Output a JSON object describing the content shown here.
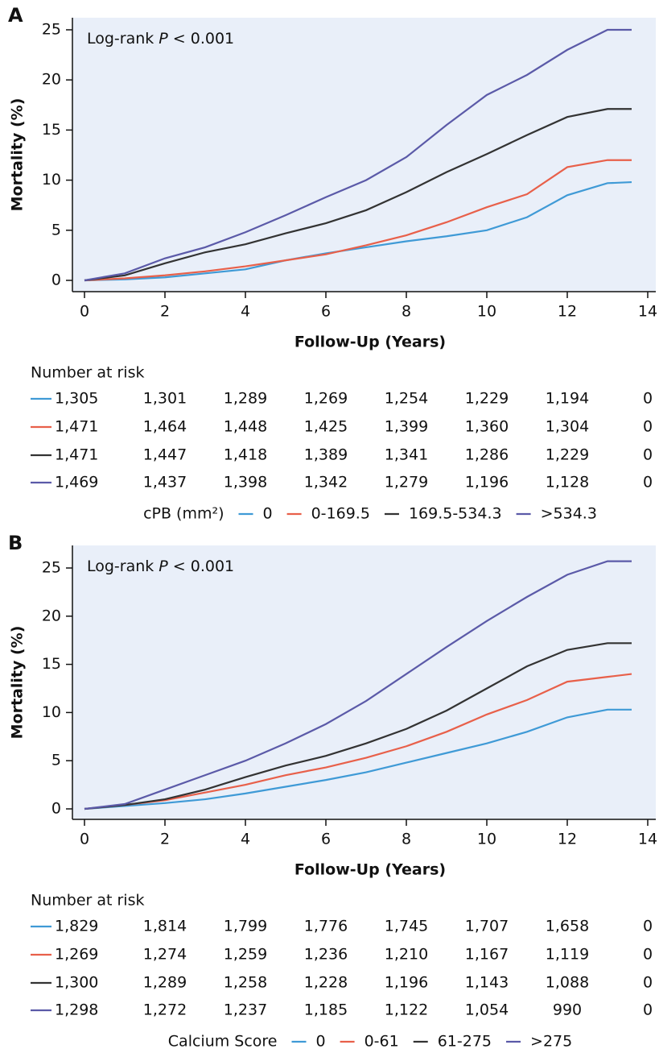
{
  "chart_data": [
    {
      "type": "line",
      "panel": "A",
      "annotation": {
        "before": "Log-rank",
        "italic": "P",
        "after": "< 0.001"
      },
      "x_label": "Follow-Up (Years)",
      "y_label": "Mortality (%)",
      "xlim": [
        0,
        14
      ],
      "xticks": [
        0,
        2,
        4,
        6,
        8,
        10,
        12,
        14
      ],
      "ylim": [
        0,
        25
      ],
      "yticks": [
        0,
        5,
        10,
        15,
        20,
        25
      ],
      "x": [
        0,
        1,
        2,
        3,
        4,
        5,
        6,
        7,
        8,
        9,
        10,
        11,
        12,
        13,
        13.6
      ],
      "risk_title": "Number at risk",
      "legend_title": "cPB (mm²)",
      "series": [
        {
          "name": "0",
          "color": "#3f9ad6",
          "values": [
            0,
            0.1,
            0.3,
            0.7,
            1.1,
            2.0,
            2.7,
            3.3,
            3.9,
            4.4,
            5.0,
            6.3,
            8.5,
            9.7,
            9.8
          ],
          "at_risk": [
            "1,305",
            "1,301",
            "1,289",
            "1,269",
            "1,254",
            "1,229",
            "1,194",
            "0"
          ]
        },
        {
          "name": "0-169.5",
          "color": "#e8604a",
          "values": [
            0,
            0.2,
            0.5,
            0.9,
            1.4,
            2.0,
            2.6,
            3.5,
            4.5,
            5.8,
            7.3,
            8.6,
            11.3,
            12.0,
            12.0
          ],
          "at_risk": [
            "1,471",
            "1,464",
            "1,448",
            "1,425",
            "1,399",
            "1,360",
            "1,304",
            "0"
          ]
        },
        {
          "name": "169.5-534.3",
          "color": "#333333",
          "values": [
            0,
            0.5,
            1.7,
            2.8,
            3.6,
            4.7,
            5.7,
            7.0,
            8.8,
            10.8,
            12.6,
            14.5,
            16.3,
            17.1,
            17.1
          ],
          "at_risk": [
            "1,471",
            "1,447",
            "1,418",
            "1,389",
            "1,341",
            "1,286",
            "1,229",
            "0"
          ]
        },
        {
          "name": ">534.3",
          "color": "#5b5aa8",
          "values": [
            0,
            0.7,
            2.2,
            3.3,
            4.8,
            6.5,
            8.3,
            10.0,
            12.3,
            15.5,
            18.5,
            20.5,
            23.0,
            25.0,
            25.0
          ],
          "at_risk": [
            "1,469",
            "1,437",
            "1,398",
            "1,342",
            "1,279",
            "1,196",
            "1,128",
            "0"
          ]
        }
      ]
    },
    {
      "type": "line",
      "panel": "B",
      "annotation": {
        "before": "Log-rank",
        "italic": "P",
        "after": "< 0.001"
      },
      "x_label": "Follow-Up (Years)",
      "y_label": "Mortality (%)",
      "xlim": [
        0,
        14
      ],
      "xticks": [
        0,
        2,
        4,
        6,
        8,
        10,
        12,
        14
      ],
      "ylim": [
        0,
        25
      ],
      "yticks": [
        0,
        5,
        10,
        15,
        20,
        25
      ],
      "x": [
        0,
        1,
        2,
        3,
        4,
        5,
        6,
        7,
        8,
        9,
        10,
        11,
        12,
        13,
        13.6
      ],
      "risk_title": "Number at risk",
      "legend_title": "Calcium Score",
      "series": [
        {
          "name": "0",
          "color": "#3f9ad6",
          "values": [
            0,
            0.3,
            0.6,
            1.0,
            1.6,
            2.3,
            3.0,
            3.8,
            4.8,
            5.8,
            6.8,
            8.0,
            9.5,
            10.3,
            10.3
          ],
          "at_risk": [
            "1,829",
            "1,814",
            "1,799",
            "1,776",
            "1,745",
            "1,707",
            "1,658",
            "0"
          ]
        },
        {
          "name": "0-61",
          "color": "#e8604a",
          "values": [
            0,
            0.4,
            0.9,
            1.7,
            2.5,
            3.5,
            4.3,
            5.3,
            6.5,
            8.0,
            9.8,
            11.3,
            13.2,
            13.7,
            14.0
          ],
          "at_risk": [
            "1,269",
            "1,274",
            "1,259",
            "1,236",
            "1,210",
            "1,167",
            "1,119",
            "0"
          ]
        },
        {
          "name": "61-275",
          "color": "#333333",
          "values": [
            0,
            0.4,
            1.0,
            2.0,
            3.3,
            4.5,
            5.5,
            6.8,
            8.3,
            10.2,
            12.5,
            14.8,
            16.5,
            17.2,
            17.2
          ],
          "at_risk": [
            "1,300",
            "1,289",
            "1,258",
            "1,228",
            "1,196",
            "1,143",
            "1,088",
            "0"
          ]
        },
        {
          "name": ">275",
          "color": "#5b5aa8",
          "values": [
            0,
            0.5,
            2.0,
            3.5,
            5.0,
            6.8,
            8.8,
            11.2,
            14.0,
            16.8,
            19.5,
            22.0,
            24.3,
            25.7,
            25.7
          ],
          "at_risk": [
            "1,298",
            "1,272",
            "1,237",
            "1,185",
            "1,122",
            "1,054",
            "990",
            "0"
          ]
        }
      ]
    }
  ]
}
